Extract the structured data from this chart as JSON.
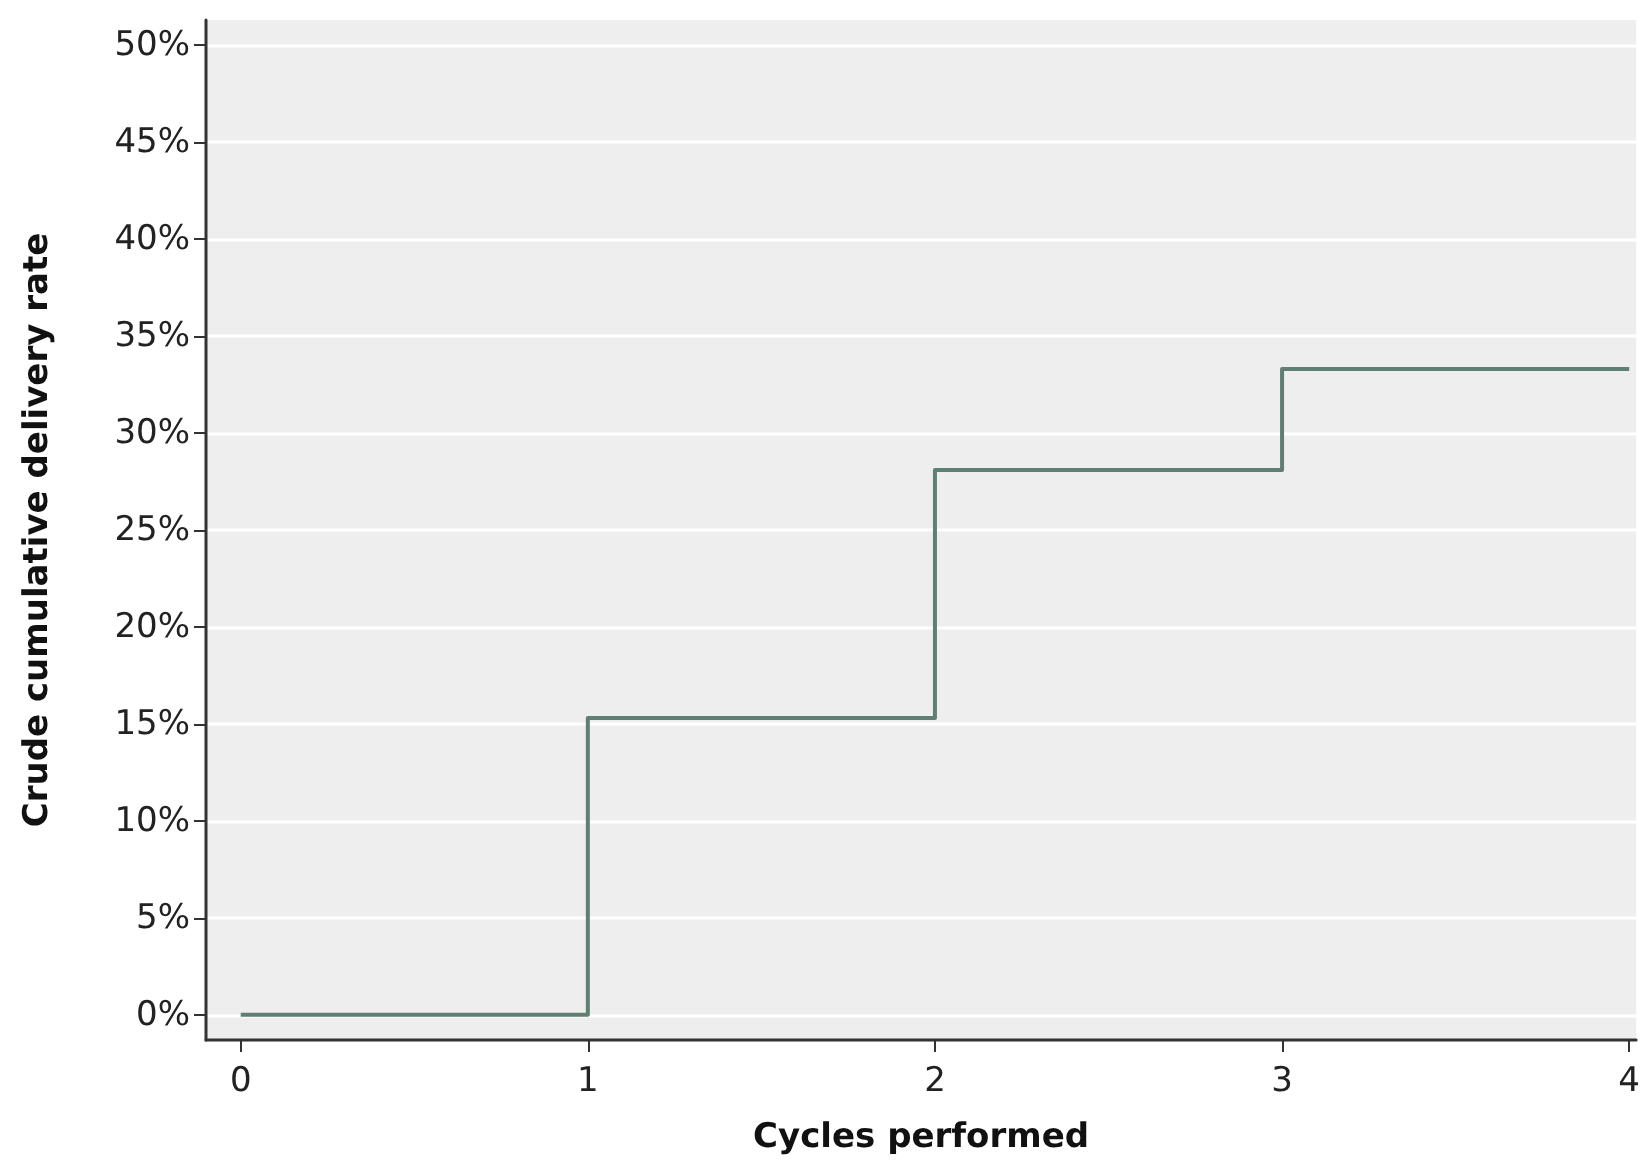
{
  "chart_data": {
    "type": "step",
    "xlabel": "Cycles performed",
    "ylabel": "Crude cumulative delivery rate",
    "x": [
      0,
      1,
      2,
      3,
      4
    ],
    "series": [
      {
        "color": "#5f7f72",
        "values": [
          0,
          15.3,
          28.1,
          33.3,
          33.3
        ]
      }
    ],
    "xlim": [
      -0.1,
      4.02
    ],
    "xticks": [
      0,
      1,
      2,
      3,
      4
    ],
    "ylim": [
      -1.3,
      51.3
    ],
    "yticks": [
      {
        "value": 0,
        "label": "0%"
      },
      {
        "value": 5,
        "label": "5%"
      },
      {
        "value": 10,
        "label": "10%"
      },
      {
        "value": 15,
        "label": "15%"
      },
      {
        "value": 20,
        "label": "20%"
      },
      {
        "value": 25,
        "label": "25%"
      },
      {
        "value": 30,
        "label": "30%"
      },
      {
        "value": 35,
        "label": "35%"
      },
      {
        "value": 40,
        "label": "40%"
      },
      {
        "value": 45,
        "label": "45%"
      },
      {
        "value": 50,
        "label": "50%"
      }
    ],
    "grid": "y",
    "marker": "none",
    "line_style": "solid"
  }
}
